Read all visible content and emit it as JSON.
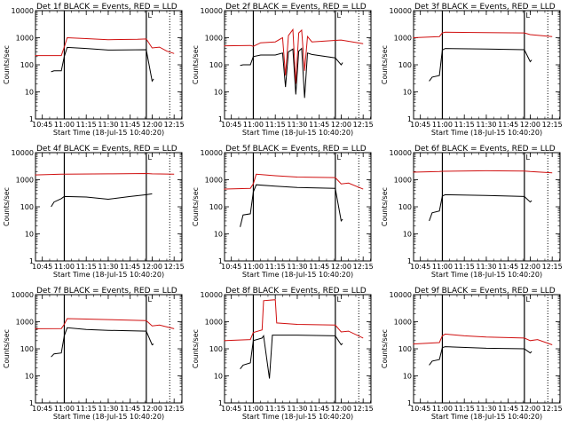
{
  "chart_data": [
    {
      "type": "line",
      "title": "Det 1f BLACK = Events, RED = LLD",
      "xlabel": "Start Time (18-Jul-15 10:40:20)",
      "ylabel": "Counts/sec",
      "yscale": "log",
      "ylim": [
        1,
        10000
      ],
      "x_ticks": [
        "10:45",
        "11:00",
        "11:15",
        "11:30",
        "11:45",
        "12:00",
        "12:15"
      ],
      "y_ticks": [
        "1",
        "10",
        "100",
        "1000",
        "10000"
      ],
      "annotation": "L",
      "series": [
        {
          "color": "#d01010",
          "points": [
            [
              "10:40",
              220
            ],
            [
              "10:58",
              220
            ],
            [
              "11:00",
              450
            ],
            [
              "11:02",
              1000
            ],
            [
              "11:15",
              930
            ],
            [
              "11:30",
              850
            ],
            [
              "11:50",
              870
            ],
            [
              "11:56",
              900
            ],
            [
              "12:00",
              420
            ],
            [
              "12:05",
              450
            ],
            [
              "12:10",
              320
            ],
            [
              "12:15",
              260
            ]
          ]
        },
        {
          "color": "#000000",
          "points": [
            [
              "10:51",
              55
            ],
            [
              "10:53",
              60
            ],
            [
              "10:58",
              60
            ],
            [
              "11:00",
              200
            ],
            [
              "11:02",
              440
            ],
            [
              "11:15",
              400
            ],
            [
              "11:30",
              350
            ],
            [
              "11:56",
              360
            ],
            [
              "12:00",
              25
            ],
            [
              "12:01",
              30
            ]
          ]
        }
      ]
    },
    {
      "type": "line",
      "title": "Det 2f BLACK = Events, RED = LLD",
      "xlabel": "Start Time (18-Jul-15 10:40:20)",
      "ylabel": "Counts/sec",
      "yscale": "log",
      "ylim": [
        1,
        10000
      ],
      "x_ticks": [
        "10:45",
        "11:00",
        "11:15",
        "11:30",
        "11:45",
        "12:00",
        "12:15"
      ],
      "y_ticks": [
        "1",
        "10",
        "100",
        "1000",
        "10000"
      ],
      "annotation": "L",
      "series": [
        {
          "color": "#d01010",
          "points": [
            [
              "10:40",
              500
            ],
            [
              "10:58",
              520
            ],
            [
              "11:00",
              480
            ],
            [
              "11:05",
              650
            ],
            [
              "11:15",
              700
            ],
            [
              "11:20",
              1000
            ],
            [
              "11:22",
              40
            ],
            [
              "11:24",
              1200
            ],
            [
              "11:27",
              2000
            ],
            [
              "11:29",
              20
            ],
            [
              "11:31",
              1500
            ],
            [
              "11:33",
              1900
            ],
            [
              "11:35",
              60
            ],
            [
              "11:37",
              1100
            ],
            [
              "11:40",
              700
            ],
            [
              "11:56",
              800
            ],
            [
              "12:00",
              820
            ],
            [
              "12:15",
              600
            ]
          ]
        },
        {
          "color": "#000000",
          "points": [
            [
              "10:51",
              95
            ],
            [
              "10:53",
              100
            ],
            [
              "10:58",
              100
            ],
            [
              "11:00",
              200
            ],
            [
              "11:05",
              230
            ],
            [
              "11:15",
              230
            ],
            [
              "11:20",
              270
            ],
            [
              "11:22",
              15
            ],
            [
              "11:24",
              300
            ],
            [
              "11:27",
              380
            ],
            [
              "11:29",
              8
            ],
            [
              "11:31",
              320
            ],
            [
              "11:33",
              400
            ],
            [
              "11:35",
              6
            ],
            [
              "11:37",
              270
            ],
            [
              "11:40",
              240
            ],
            [
              "11:56",
              180
            ],
            [
              "12:00",
              100
            ],
            [
              "12:01",
              120
            ]
          ]
        }
      ]
    },
    {
      "type": "line",
      "title": "Det 3f BLACK = Events, RED = LLD",
      "xlabel": "Start Time (18-Jul-15 10:40:20)",
      "ylabel": "Counts/sec",
      "yscale": "log",
      "ylim": [
        1,
        10000
      ],
      "x_ticks": [
        "10:45",
        "11:00",
        "11:15",
        "11:30",
        "11:45",
        "12:00",
        "12:15"
      ],
      "y_ticks": [
        "1",
        "10",
        "100",
        "1000",
        "10000"
      ],
      "annotation": "L",
      "series": [
        {
          "color": "#d01010",
          "points": [
            [
              "10:40",
              1000
            ],
            [
              "10:58",
              1100
            ],
            [
              "11:00",
              1500
            ],
            [
              "11:02",
              1600
            ],
            [
              "11:30",
              1550
            ],
            [
              "11:56",
              1500
            ],
            [
              "12:00",
              1300
            ],
            [
              "12:15",
              1100
            ]
          ]
        },
        {
          "color": "#000000",
          "points": [
            [
              "10:51",
              25
            ],
            [
              "10:53",
              35
            ],
            [
              "10:58",
              40
            ],
            [
              "11:00",
              350
            ],
            [
              "11:02",
              400
            ],
            [
              "11:30",
              380
            ],
            [
              "11:56",
              360
            ],
            [
              "12:00",
              130
            ],
            [
              "12:01",
              150
            ]
          ]
        }
      ]
    },
    {
      "type": "line",
      "title": "Det 4f BLACK = Events, RED = LLD",
      "xlabel": "Start Time (18-Jul-15 10:40:20)",
      "ylabel": "Counts/sec",
      "yscale": "log",
      "ylim": [
        1,
        10000
      ],
      "x_ticks": [
        "10:45",
        "11:00",
        "11:15",
        "11:30",
        "11:45",
        "12:00",
        "12:15"
      ],
      "y_ticks": [
        "1",
        "10",
        "100",
        "1000",
        "10000"
      ],
      "annotation": "L",
      "series": [
        {
          "color": "#d01010",
          "points": [
            [
              "10:40",
              1500
            ],
            [
              "10:58",
              1600
            ],
            [
              "11:00",
              1600
            ],
            [
              "11:30",
              1650
            ],
            [
              "11:56",
              1700
            ],
            [
              "12:00",
              1650
            ],
            [
              "12:15",
              1600
            ]
          ]
        },
        {
          "color": "#000000",
          "points": [
            [
              "10:51",
              100
            ],
            [
              "10:53",
              150
            ],
            [
              "10:58",
              200
            ],
            [
              "11:00",
              240
            ],
            [
              "11:15",
              230
            ],
            [
              "11:30",
              190
            ],
            [
              "11:45",
              240
            ],
            [
              "11:56",
              280
            ],
            [
              "12:00",
              300
            ]
          ]
        }
      ]
    },
    {
      "type": "line",
      "title": "Det 5f BLACK = Events, RED = LLD",
      "xlabel": "Start Time (18-Jul-15 10:40:20)",
      "ylabel": "Counts/sec",
      "yscale": "log",
      "ylim": [
        1,
        10000
      ],
      "x_ticks": [
        "10:45",
        "11:00",
        "11:15",
        "11:30",
        "11:45",
        "12:00",
        "12:15"
      ],
      "y_ticks": [
        "1",
        "10",
        "100",
        "1000",
        "10000"
      ],
      "annotation": "L",
      "series": [
        {
          "color": "#d01010",
          "points": [
            [
              "10:40",
              450
            ],
            [
              "10:58",
              480
            ],
            [
              "11:00",
              700
            ],
            [
              "11:02",
              1600
            ],
            [
              "11:15",
              1400
            ],
            [
              "11:30",
              1250
            ],
            [
              "11:56",
              1200
            ],
            [
              "12:00",
              700
            ],
            [
              "12:05",
              750
            ],
            [
              "12:15",
              450
            ]
          ]
        },
        {
          "color": "#000000",
          "points": [
            [
              "10:51",
              18
            ],
            [
              "10:53",
              50
            ],
            [
              "10:58",
              55
            ],
            [
              "11:00",
              350
            ],
            [
              "11:02",
              650
            ],
            [
              "11:15",
              580
            ],
            [
              "11:30",
              520
            ],
            [
              "11:56",
              480
            ],
            [
              "12:00",
              30
            ],
            [
              "12:01",
              35
            ]
          ]
        }
      ]
    },
    {
      "type": "line",
      "title": "Det 6f BLACK = Events, RED = LLD",
      "xlabel": "Start Time (18-Jul-15 10:40:20)",
      "ylabel": "Counts/sec",
      "yscale": "log",
      "ylim": [
        1,
        10000
      ],
      "x_ticks": [
        "10:45",
        "11:00",
        "11:15",
        "11:30",
        "11:45",
        "12:00",
        "12:15"
      ],
      "y_ticks": [
        "1",
        "10",
        "100",
        "1000",
        "10000"
      ],
      "annotation": "L",
      "series": [
        {
          "color": "#d01010",
          "points": [
            [
              "10:40",
              1900
            ],
            [
              "10:58",
              2000
            ],
            [
              "11:00",
              2050
            ],
            [
              "11:30",
              2150
            ],
            [
              "11:56",
              2100
            ],
            [
              "12:00",
              2000
            ],
            [
              "12:15",
              1800
            ]
          ]
        },
        {
          "color": "#000000",
          "points": [
            [
              "10:51",
              30
            ],
            [
              "10:53",
              60
            ],
            [
              "10:58",
              70
            ],
            [
              "11:00",
              250
            ],
            [
              "11:02",
              280
            ],
            [
              "11:30",
              260
            ],
            [
              "11:56",
              240
            ],
            [
              "12:00",
              150
            ],
            [
              "12:01",
              170
            ]
          ]
        }
      ]
    },
    {
      "type": "line",
      "title": "Det 7f BLACK = Events, RED = LLD",
      "xlabel": "Start Time (18-Jul-15 10:40:20)",
      "ylabel": "Counts/sec",
      "yscale": "log",
      "ylim": [
        1,
        10000
      ],
      "x_ticks": [
        "10:45",
        "11:00",
        "11:15",
        "11:30",
        "11:45",
        "12:00",
        "12:15"
      ],
      "y_ticks": [
        "1",
        "10",
        "100",
        "1000",
        "10000"
      ],
      "annotation": "L",
      "series": [
        {
          "color": "#d01010",
          "points": [
            [
              "10:40",
              550
            ],
            [
              "10:58",
              560
            ],
            [
              "11:00",
              800
            ],
            [
              "11:02",
              1300
            ],
            [
              "11:15",
              1250
            ],
            [
              "11:30",
              1200
            ],
            [
              "11:56",
              1100
            ],
            [
              "12:00",
              700
            ],
            [
              "12:05",
              750
            ],
            [
              "12:15",
              550
            ]
          ]
        },
        {
          "color": "#000000",
          "points": [
            [
              "10:51",
              50
            ],
            [
              "10:53",
              65
            ],
            [
              "10:58",
              70
            ],
            [
              "11:00",
              300
            ],
            [
              "11:02",
              600
            ],
            [
              "11:15",
              520
            ],
            [
              "11:30",
              480
            ],
            [
              "11:56",
              450
            ],
            [
              "12:00",
              140
            ],
            [
              "12:01",
              150
            ]
          ]
        }
      ]
    },
    {
      "type": "line",
      "title": "Det 8f BLACK = Events, RED = LLD",
      "xlabel": "Start Time (18-Jul-15 10:40:20)",
      "ylabel": "Counts/sec",
      "yscale": "log",
      "ylim": [
        1,
        10000
      ],
      "x_ticks": [
        "10:45",
        "11:00",
        "11:15",
        "11:30",
        "11:45",
        "12:00",
        "12:15"
      ],
      "y_ticks": [
        "1",
        "10",
        "100",
        "1000",
        "10000"
      ],
      "annotation": "L",
      "series": [
        {
          "color": "#d01010",
          "points": [
            [
              "10:40",
              200
            ],
            [
              "10:58",
              220
            ],
            [
              "11:00",
              400
            ],
            [
              "11:06",
              500
            ],
            [
              "11:07",
              6000
            ],
            [
              "11:15",
              6500
            ],
            [
              "11:16",
              900
            ],
            [
              "11:30",
              800
            ],
            [
              "11:56",
              750
            ],
            [
              "12:00",
              420
            ],
            [
              "12:05",
              450
            ],
            [
              "12:15",
              250
            ]
          ]
        },
        {
          "color": "#000000",
          "points": [
            [
              "10:51",
              18
            ],
            [
              "10:53",
              25
            ],
            [
              "10:58",
              30
            ],
            [
              "11:00",
              200
            ],
            [
              "11:06",
              250
            ],
            [
              "11:07",
              300
            ],
            [
              "11:11",
              8
            ],
            [
              "11:13",
              320
            ],
            [
              "11:30",
              320
            ],
            [
              "11:56",
              300
            ],
            [
              "12:00",
              140
            ],
            [
              "12:01",
              160
            ]
          ]
        }
      ]
    },
    {
      "type": "line",
      "title": "Det 9f BLACK = Events, RED = LLD",
      "xlabel": "Start Time (18-Jul-15 10:40:20)",
      "ylabel": "Counts/sec",
      "yscale": "log",
      "ylim": [
        1,
        10000
      ],
      "x_ticks": [
        "10:45",
        "11:00",
        "11:15",
        "11:30",
        "11:45",
        "12:00",
        "12:15"
      ],
      "y_ticks": [
        "1",
        "10",
        "100",
        "1000",
        "10000"
      ],
      "annotation": "L",
      "series": [
        {
          "color": "#d01010",
          "points": [
            [
              "10:40",
              150
            ],
            [
              "10:58",
              170
            ],
            [
              "11:00",
              300
            ],
            [
              "11:02",
              350
            ],
            [
              "11:15",
              300
            ],
            [
              "11:30",
              270
            ],
            [
              "11:56",
              250
            ],
            [
              "12:00",
              200
            ],
            [
              "12:05",
              220
            ],
            [
              "12:15",
              140
            ]
          ]
        },
        {
          "color": "#000000",
          "points": [
            [
              "10:51",
              25
            ],
            [
              "10:53",
              35
            ],
            [
              "10:58",
              40
            ],
            [
              "11:00",
              110
            ],
            [
              "11:02",
              120
            ],
            [
              "11:30",
              105
            ],
            [
              "11:56",
              100
            ],
            [
              "12:00",
              70
            ],
            [
              "12:01",
              80
            ]
          ]
        }
      ]
    }
  ]
}
